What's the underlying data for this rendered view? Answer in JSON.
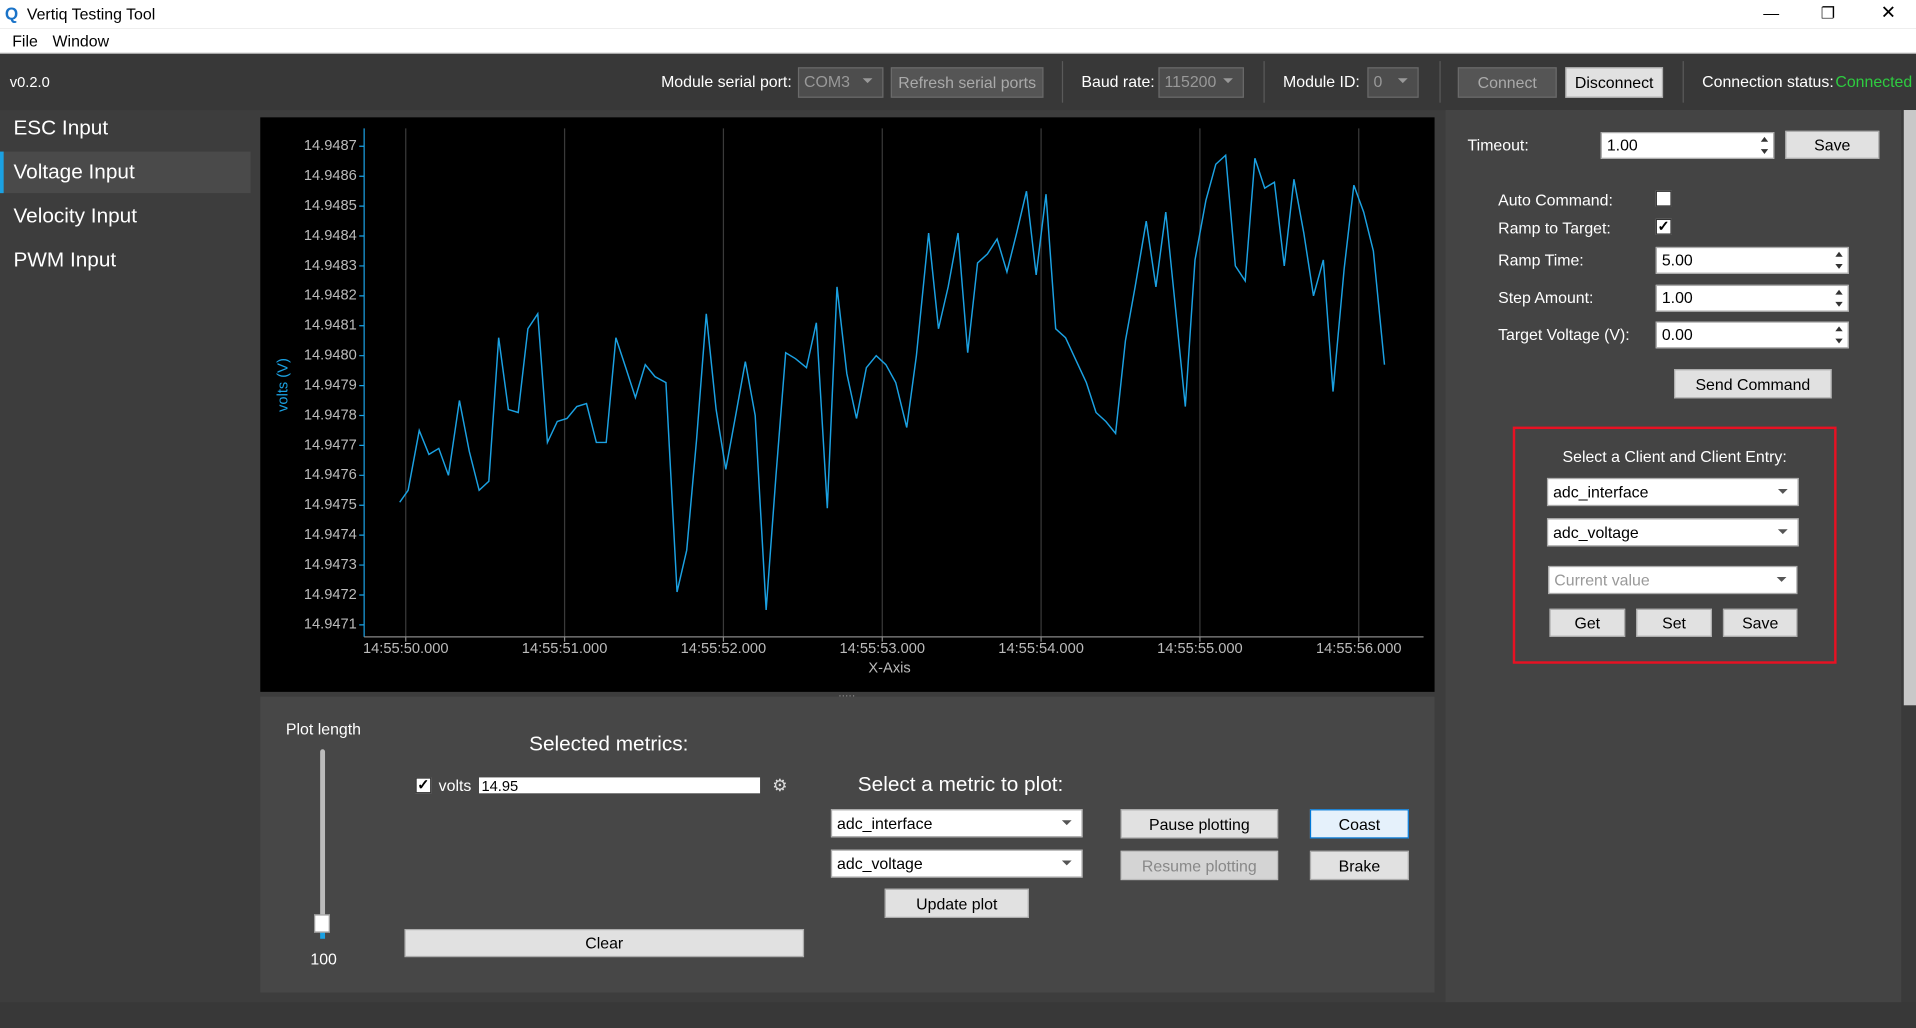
{
  "window": {
    "title": "Vertiq Testing Tool"
  },
  "menu": [
    "File",
    "Window"
  ],
  "toolbar": {
    "version": "v0.2.0",
    "serial_port_label": "Module serial port:",
    "serial_port": "COM3",
    "refresh_button": "Refresh serial ports",
    "baud_label": "Baud rate:",
    "baud": "115200",
    "module_id_label": "Module ID:",
    "module_id": "0",
    "connect_button": "Connect",
    "disconnect_button": "Disconnect",
    "status_label": "Connection status:",
    "status": "Connected"
  },
  "sidebar": {
    "items": [
      "ESC Input",
      "Voltage Input",
      "Velocity Input",
      "PWM Input"
    ],
    "selected_index": 1
  },
  "chart_data": {
    "type": "line",
    "xlabel": "X-Axis",
    "ylabel": "volts (V)",
    "color": "#1ba1e2",
    "xgrid": true,
    "x": [
      "14:55:49.962",
      "14:55:50.015",
      "14:55:50.085",
      "14:55:50.146",
      "14:55:50.208",
      "14:55:50.269",
      "14:55:50.338",
      "14:55:50.400",
      "14:55:50.462",
      "14:55:50.523",
      "14:55:50.585",
      "14:55:50.646",
      "14:55:50.708",
      "14:55:50.769",
      "14:55:50.831",
      "14:55:50.892",
      "14:55:50.954",
      "14:55:51.015",
      "14:55:51.077",
      "14:55:51.138",
      "14:55:51.200",
      "14:55:51.262",
      "14:55:51.323",
      "14:55:51.385",
      "14:55:51.446",
      "14:55:51.508",
      "14:55:51.569",
      "14:55:51.638",
      "14:55:51.708",
      "14:55:51.769",
      "14:55:51.831",
      "14:55:51.892",
      "14:55:51.954",
      "14:55:52.015",
      "14:55:52.077",
      "14:55:52.138",
      "14:55:52.200",
      "14:55:52.269",
      "14:55:52.331",
      "14:55:52.392",
      "14:55:52.454",
      "14:55:52.523",
      "14:55:52.585",
      "14:55:52.654",
      "14:55:52.715",
      "14:55:52.777",
      "14:55:52.838",
      "14:55:52.900",
      "14:55:52.962",
      "14:55:53.023",
      "14:55:53.085",
      "14:55:53.154",
      "14:55:53.215",
      "14:55:53.292",
      "14:55:53.354",
      "14:55:53.415",
      "14:55:53.477",
      "14:55:53.538",
      "14:55:53.600",
      "14:55:53.662",
      "14:55:53.723",
      "14:55:53.785",
      "14:55:53.846",
      "14:55:53.908",
      "14:55:53.969",
      "14:55:54.031",
      "14:55:54.092",
      "14:55:54.154",
      "14:55:54.215",
      "14:55:54.285",
      "14:55:54.346",
      "14:55:54.408",
      "14:55:54.469",
      "14:55:54.531",
      "14:55:54.592",
      "14:55:54.662",
      "14:55:54.723",
      "14:55:54.785",
      "14:55:54.846",
      "14:55:54.908",
      "14:55:54.969",
      "14:55:55.038",
      "14:55:55.100",
      "14:55:55.162",
      "14:55:55.223",
      "14:55:55.285",
      "14:55:55.346",
      "14:55:55.408",
      "14:55:55.469",
      "14:55:55.531",
      "14:55:55.592",
      "14:55:55.654",
      "14:55:55.715",
      "14:55:55.777",
      "14:55:55.838",
      "14:55:55.908",
      "14:55:55.969",
      "14:55:56.031",
      "14:55:56.092",
      "14:55:56.162"
    ],
    "values": [
      14.94751,
      14.94755,
      14.94775,
      14.94767,
      14.94769,
      14.9476,
      14.94785,
      14.94768,
      14.94755,
      14.94758,
      14.94806,
      14.94782,
      14.94781,
      14.94809,
      14.94814,
      14.94771,
      14.94778,
      14.94779,
      14.94783,
      14.94784,
      14.94771,
      14.94771,
      14.94806,
      14.94796,
      14.94786,
      14.94797,
      14.94793,
      14.94791,
      14.94721,
      14.94735,
      14.94772,
      14.94814,
      14.94782,
      14.94762,
      14.9478,
      14.94798,
      14.9478,
      14.94715,
      14.9476,
      14.94801,
      14.94799,
      14.94796,
      14.94811,
      14.94749,
      14.94823,
      14.94794,
      14.94779,
      14.94796,
      14.948,
      14.94797,
      14.94791,
      14.94776,
      14.948,
      14.94841,
      14.94809,
      14.94823,
      14.94841,
      14.94801,
      14.94831,
      14.94834,
      14.94839,
      14.94828,
      14.94841,
      14.94855,
      14.94827,
      14.94854,
      14.94809,
      14.94806,
      14.94799,
      14.94791,
      14.94781,
      14.94778,
      14.94774,
      14.94805,
      14.94823,
      14.94845,
      14.94823,
      14.94848,
      14.94816,
      14.94783,
      14.94832,
      14.94852,
      14.94864,
      14.94867,
      14.9483,
      14.94825,
      14.94866,
      14.94856,
      14.94858,
      14.9483,
      14.94859,
      14.94841,
      14.9482,
      14.94832,
      14.94788,
      14.94829,
      14.94857,
      14.94848,
      14.94835,
      14.94797
    ],
    "xlim": [
      "14:55:49.738",
      "14:55:56.408"
    ],
    "xticks": [
      "14:55:50.000",
      "14:55:51.000",
      "14:55:52.000",
      "14:55:53.000",
      "14:55:54.000",
      "14:55:55.000",
      "14:55:56.000"
    ],
    "ylim": [
      14.94706,
      14.94876
    ],
    "yticks": [
      14.9471,
      14.9472,
      14.9473,
      14.9474,
      14.9475,
      14.9476,
      14.9477,
      14.9478,
      14.9479,
      {
        "value": 14.948,
        "label": "14.9480"
      },
      14.9481,
      14.9482,
      14.9483,
      14.9484,
      14.9485,
      14.9486,
      14.9487
    ]
  },
  "bottom_panel": {
    "plot_length_label": "Plot length",
    "plot_length": 100,
    "selected_metrics_title": "Selected metrics:",
    "metric": {
      "name": "volts",
      "value": "14.95",
      "checked": true
    },
    "select_title": "Select a metric to plot:",
    "client": "adc_interface",
    "entry": "adc_voltage",
    "update_button": "Update plot",
    "clear_button": "Clear",
    "pause_button": "Pause plotting",
    "resume_button": "Resume plotting",
    "coast_button": "Coast",
    "brake_button": "Brake"
  },
  "right_panel": {
    "timeout_label": "Timeout:",
    "timeout": "1.00",
    "save_button": "Save",
    "fields": [
      {
        "label": "Auto Command:",
        "checked": false
      },
      {
        "label": "Ramp to Target:",
        "checked": true
      },
      {
        "label": "Ramp Time:",
        "value": "5.00"
      },
      {
        "label": "Step Amount:",
        "value": "1.00"
      },
      {
        "label": "Target Voltage (V):",
        "value": "0.00"
      }
    ],
    "send_button": "Send Command",
    "client_box": {
      "title": "Select a Client and Client Entry:",
      "client": "adc_interface",
      "entry": "adc_voltage",
      "placeholder": "Current value",
      "buttons": [
        "Get",
        "Set",
        "Save"
      ]
    }
  }
}
